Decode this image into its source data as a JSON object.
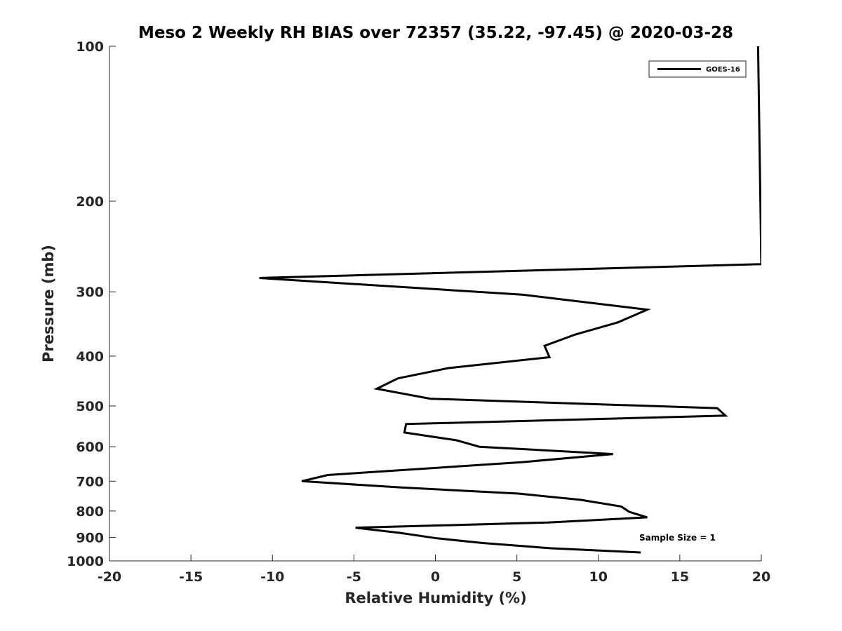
{
  "chart_data": {
    "type": "line",
    "title": "Meso 2 Weekly RH BIAS over 72357 (35.22, -97.45) @ 2020-03-28",
    "xlabel": "Relative Humidity (%)",
    "ylabel": "Pressure (mb)",
    "xlim": [
      -20,
      20
    ],
    "ylim": [
      1000,
      100
    ],
    "yscale": "log",
    "y_reversed": true,
    "xticks": [
      -20,
      -15,
      -10,
      -5,
      0,
      5,
      10,
      15,
      20
    ],
    "xtick_labels": [
      "-20",
      "-15",
      "-10",
      "-5",
      "0",
      "5",
      "10",
      "15",
      "20"
    ],
    "yticks": [
      100,
      200,
      300,
      400,
      500,
      600,
      700,
      800,
      900,
      1000
    ],
    "ytick_labels": [
      "100",
      "200",
      "300",
      "400",
      "500",
      "600",
      "700",
      "800",
      "900",
      "1000"
    ],
    "grid": false,
    "legend": "top-right",
    "annotation": "Sample Size = 1",
    "line_color": "#000000",
    "series": [
      {
        "name": "GOES-16",
        "points": [
          {
            "x": 12.6,
            "y": 963
          },
          {
            "x": 7.1,
            "y": 945
          },
          {
            "x": 2.9,
            "y": 923
          },
          {
            "x": 0.1,
            "y": 904
          },
          {
            "x": -2.2,
            "y": 882
          },
          {
            "x": -4.9,
            "y": 862
          },
          {
            "x": 6.9,
            "y": 842
          },
          {
            "x": 13.0,
            "y": 823
          },
          {
            "x": 11.9,
            "y": 803
          },
          {
            "x": 11.4,
            "y": 784
          },
          {
            "x": 8.9,
            "y": 761
          },
          {
            "x": 5.1,
            "y": 740
          },
          {
            "x": -2.1,
            "y": 720
          },
          {
            "x": -8.2,
            "y": 700
          },
          {
            "x": -6.6,
            "y": 681
          },
          {
            "x": 5.3,
            "y": 643
          },
          {
            "x": 10.9,
            "y": 620
          },
          {
            "x": 2.7,
            "y": 600
          },
          {
            "x": 1.3,
            "y": 583
          },
          {
            "x": -1.9,
            "y": 563
          },
          {
            "x": -1.8,
            "y": 542
          },
          {
            "x": 17.8,
            "y": 522
          },
          {
            "x": 17.3,
            "y": 505
          },
          {
            "x": -0.3,
            "y": 484
          },
          {
            "x": -3.6,
            "y": 463
          },
          {
            "x": -2.3,
            "y": 442
          },
          {
            "x": 0.8,
            "y": 422
          },
          {
            "x": 7.0,
            "y": 402
          },
          {
            "x": 6.7,
            "y": 382
          },
          {
            "x": 8.6,
            "y": 363
          },
          {
            "x": 11.2,
            "y": 344
          },
          {
            "x": 13.0,
            "y": 325
          },
          {
            "x": 5.4,
            "y": 304
          },
          {
            "x": -10.8,
            "y": 282
          },
          {
            "x": 20.0,
            "y": 265
          },
          {
            "x": 19.8,
            "y": 100
          }
        ]
      }
    ]
  }
}
